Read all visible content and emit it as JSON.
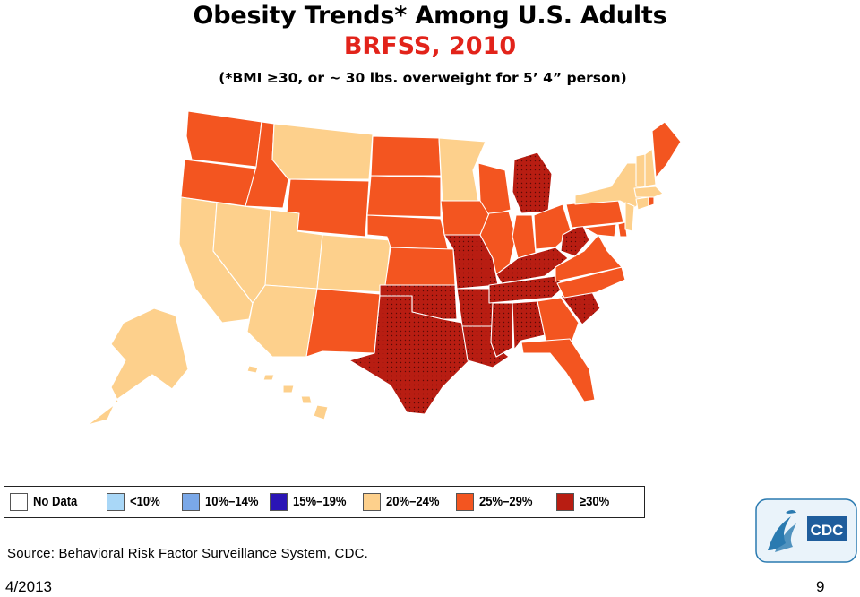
{
  "title": "Obesity Trends* Among U.S. Adults",
  "subtitle": "BRFSS, 2010",
  "note": "(*BMI ≥30, or ~ 30 lbs. overweight for 5’ 4” person)",
  "colors": {
    "no_data": "#ffffff",
    "lt10": "#a9d7f7",
    "c10_14": "#7aa8e8",
    "c15_19": "#2a15b5",
    "c20_24": "#fdd08c",
    "c25_29": "#f35520",
    "c30plus": "#b81d12"
  },
  "legend": [
    {
      "label": "No Data",
      "color": "#ffffff"
    },
    {
      "label": "<10%",
      "color": "#a9d7f7"
    },
    {
      "label": "10%–14%",
      "color": "#7aa8e8"
    },
    {
      "label": "15%–19%",
      "color": "#2a15b5"
    },
    {
      "label": "20%–24%",
      "color": "#fdd08c"
    },
    {
      "label": "25%–29%",
      "color": "#f35520"
    },
    {
      "label": "≥30%",
      "color": "#b81d12"
    }
  ],
  "states": {
    "20-24%": [
      "MT",
      "MN",
      "CA",
      "NV",
      "UT",
      "CO",
      "AZ",
      "AK",
      "HI",
      "NY",
      "VT",
      "NH",
      "MA",
      "CT",
      "NJ"
    ],
    "25-29%": [
      "WA",
      "OR",
      "ID",
      "WY",
      "ND",
      "SD",
      "NE",
      "KS",
      "NM",
      "IA",
      "WI",
      "IL",
      "IN",
      "OH",
      "PA",
      "ME",
      "VA",
      "NC",
      "GA",
      "FL",
      "MD",
      "DE",
      "RI"
    ],
    "30+%": [
      "TX",
      "OK",
      "MO",
      "AR",
      "LA",
      "MS",
      "AL",
      "TN",
      "KY",
      "WV",
      "MI",
      "SC"
    ]
  },
  "source": "Source: Behavioral Risk Factor Surveillance System, CDC.",
  "footer": {
    "date": "4/2013",
    "page": "9"
  },
  "logo": {
    "text": "CDC",
    "icon": "hhs-eagle-icon"
  }
}
